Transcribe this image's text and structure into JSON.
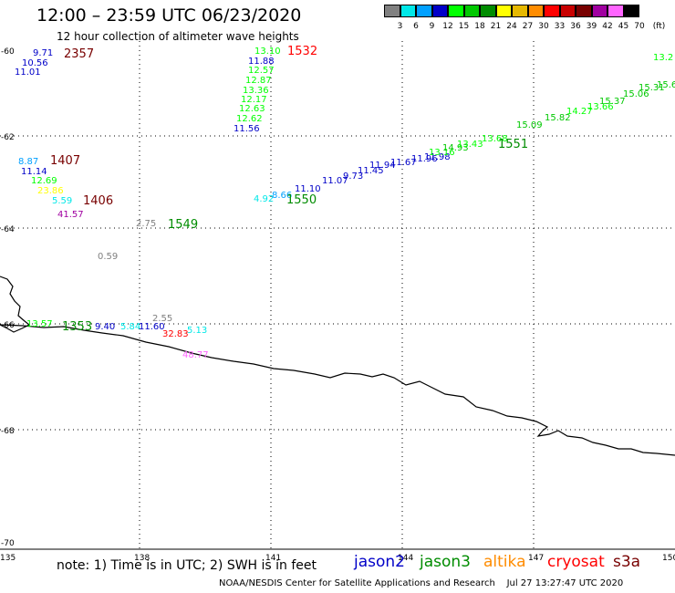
{
  "header": {
    "title": "12:00 – 23:59 UTC 06/23/2020",
    "subtitle": "12 hour collection of altimeter wave heights"
  },
  "legend_scale": {
    "labels": [
      "3",
      "6",
      "9",
      "12",
      "15",
      "18",
      "21",
      "24",
      "27",
      "30",
      "33",
      "36",
      "39",
      "42",
      "45",
      "70",
      "(ft)"
    ],
    "colors": [
      "#808080",
      "#00e8e8",
      "#00a0ff",
      "#0000c8",
      "#00ff00",
      "#00c800",
      "#008c00",
      "#ffff00",
      "#e6b800",
      "#ff8c00",
      "#ff0000",
      "#c80000",
      "#780000",
      "#a000a0",
      "#ff64ff",
      "#000000"
    ]
  },
  "axes": {
    "x_ticks": [
      "135",
      "138",
      "141",
      "144",
      "147",
      "150"
    ],
    "y_ticks": [
      "-60",
      "-62",
      "-64",
      "-66",
      "-68",
      "-70"
    ]
  },
  "time_labels": [
    {
      "text": "2357",
      "color": "#780000"
    },
    {
      "text": "1532",
      "color": "#ff0000"
    },
    {
      "text": "1407",
      "color": "#780000"
    },
    {
      "text": "1406",
      "color": "#780000"
    },
    {
      "text": "1549",
      "color": "#008c00"
    },
    {
      "text": "1550",
      "color": "#008c00"
    },
    {
      "text": "1551",
      "color": "#008c00"
    },
    {
      "text": "1353",
      "color": "#008c00"
    }
  ],
  "wave_heights": [
    {
      "text": "9.71",
      "color": "#0000c8"
    },
    {
      "text": "10.56",
      "color": "#0000c8"
    },
    {
      "text": "11.01",
      "color": "#0000c8"
    },
    {
      "text": "13.10",
      "color": "#00ff00"
    },
    {
      "text": "11.88",
      "color": "#0000c8"
    },
    {
      "text": "12.57",
      "color": "#00ff00"
    },
    {
      "text": "12.87",
      "color": "#00ff00"
    },
    {
      "text": "13.36",
      "color": "#00ff00"
    },
    {
      "text": "12.17",
      "color": "#00ff00"
    },
    {
      "text": "12.63",
      "color": "#00ff00"
    },
    {
      "text": "12.62",
      "color": "#00ff00"
    },
    {
      "text": "11.56",
      "color": "#0000c8"
    },
    {
      "text": "8.87",
      "color": "#00a0ff"
    },
    {
      "text": "11.14",
      "color": "#0000c8"
    },
    {
      "text": "12.69",
      "color": "#00ff00"
    },
    {
      "text": "23.86",
      "color": "#ffff00"
    },
    {
      "text": "5.59",
      "color": "#00e8e8"
    },
    {
      "text": "41.57",
      "color": "#a000a0"
    },
    {
      "text": "2.75",
      "color": "#808080"
    },
    {
      "text": "0.59",
      "color": "#808080"
    },
    {
      "text": "4.92",
      "color": "#00e8e8"
    },
    {
      "text": "8.66",
      "color": "#00a0ff"
    },
    {
      "text": "11.10",
      "color": "#0000c8"
    },
    {
      "text": "11.07",
      "color": "#0000c8"
    },
    {
      "text": "9.73",
      "color": "#0000c8"
    },
    {
      "text": "11.45",
      "color": "#0000c8"
    },
    {
      "text": "11.94",
      "color": "#0000c8"
    },
    {
      "text": "11.67",
      "color": "#0000c8"
    },
    {
      "text": "11.96",
      "color": "#0000c8"
    },
    {
      "text": "11.98",
      "color": "#0000c8"
    },
    {
      "text": "13.16",
      "color": "#00ff00"
    },
    {
      "text": "14.93",
      "color": "#00c800"
    },
    {
      "text": "13.43",
      "color": "#00ff00"
    },
    {
      "text": "13.68",
      "color": "#00ff00"
    },
    {
      "text": "15.09",
      "color": "#00c800"
    },
    {
      "text": "15.82",
      "color": "#00c800"
    },
    {
      "text": "14.27",
      "color": "#00ff00"
    },
    {
      "text": "13.66",
      "color": "#00ff00"
    },
    {
      "text": "15.37",
      "color": "#00c800"
    },
    {
      "text": "15.06",
      "color": "#00c800"
    },
    {
      "text": "15.31",
      "color": "#00c800"
    },
    {
      "text": "15.6",
      "color": "#00c800"
    },
    {
      "text": "13.2",
      "color": "#00ff00"
    },
    {
      "text": "13.57",
      "color": "#00ff00"
    },
    {
      "text": "9.40",
      "color": "#0000c8"
    },
    {
      "text": "5.84",
      "color": "#00e8e8"
    },
    {
      "text": "11.60",
      "color": "#0000c8"
    },
    {
      "text": "2.55",
      "color": "#808080"
    },
    {
      "text": "32.83",
      "color": "#ff0000"
    },
    {
      "text": "5.13",
      "color": "#00e8e8"
    },
    {
      "text": "48.77",
      "color": "#ff64ff"
    }
  ],
  "footer": {
    "note": "note: 1) Time is in UTC; 2) SWH is in feet",
    "satellites": [
      {
        "text": "jason2",
        "color": "#0000c8"
      },
      {
        "text": "jason3",
        "color": "#008c00"
      },
      {
        "text": "altika",
        "color": "#ff8c00"
      },
      {
        "text": "cryosat",
        "color": "#ff0000"
      },
      {
        "text": "s3a",
        "color": "#780000"
      }
    ],
    "credit": "NOAA/NESDIS Center for Satellite Applications and Research    Jul 27 13:27:47 UTC 2020"
  }
}
